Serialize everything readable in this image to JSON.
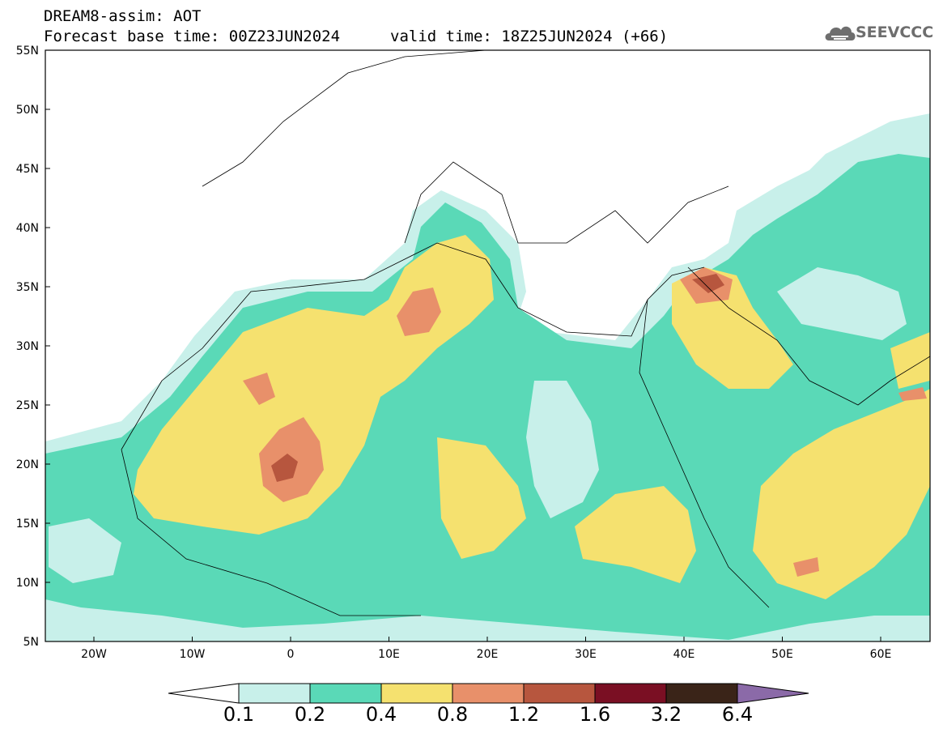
{
  "header": {
    "line1": "DREAM8-assim: AOT",
    "line2": "Forecast base time: 00Z23JUN2024",
    "line2b": "valid time: 18Z25JUN2024 (+66)"
  },
  "logo": {
    "text": "SEEVCCC",
    "icon": "cloud-icon"
  },
  "axes": {
    "lat_labels": [
      "55N",
      "50N",
      "45N",
      "40N",
      "35N",
      "30N",
      "25N",
      "20N",
      "15N",
      "10N",
      "5N"
    ],
    "lon_labels": [
      "20W",
      "10W",
      "0",
      "10E",
      "20E",
      "30E",
      "40E",
      "50E",
      "60E"
    ]
  },
  "colorbar": {
    "labels": [
      "0.1",
      "0.2",
      "0.4",
      "0.8",
      "1.2",
      "1.6",
      "3.2",
      "6.4"
    ],
    "colors": [
      "#ffffff",
      "#c8f0ea",
      "#5ad9b7",
      "#f5e16f",
      "#e8906a",
      "#b7563e",
      "#7a0f23",
      "#3a2418",
      "#8b6aa8"
    ]
  },
  "colors": {
    "c1": "#c8f0ea",
    "c2": "#5ad9b7",
    "c3": "#f5e16f",
    "c4": "#e8906a",
    "c5": "#b7563e",
    "c6": "#7a2c2c"
  }
}
